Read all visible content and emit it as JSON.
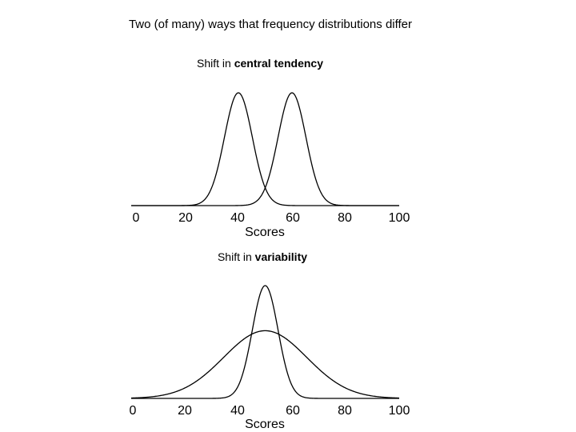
{
  "title": "Two (of many) ways that frequency distributions differ",
  "chart_data": [
    {
      "type": "line",
      "subtitle_plain": "Shift in ",
      "subtitle_bold": "central tendency",
      "xlabel": "Scores",
      "ylabel": "",
      "xlim": [
        0,
        100
      ],
      "x_ticks": [
        "0",
        "20",
        "40",
        "60",
        "80",
        "100"
      ],
      "series": [
        {
          "kind": "normal-curve",
          "mean": 40,
          "sd": 5.2,
          "peak": 1.0
        },
        {
          "kind": "normal-curve",
          "mean": 60,
          "sd": 5.2,
          "peak": 1.0
        }
      ]
    },
    {
      "type": "line",
      "subtitle_plain": "Shift in ",
      "subtitle_bold": "variability",
      "xlabel": "Scores",
      "ylabel": "",
      "xlim": [
        0,
        100
      ],
      "x_ticks": [
        "0",
        "20",
        "40",
        "60",
        "80",
        "100"
      ],
      "series": [
        {
          "kind": "normal-curve",
          "mean": 50,
          "sd": 4.8,
          "peak": 1.0
        },
        {
          "kind": "normal-curve",
          "mean": 50,
          "sd": 15.5,
          "peak": 0.6
        }
      ]
    }
  ]
}
